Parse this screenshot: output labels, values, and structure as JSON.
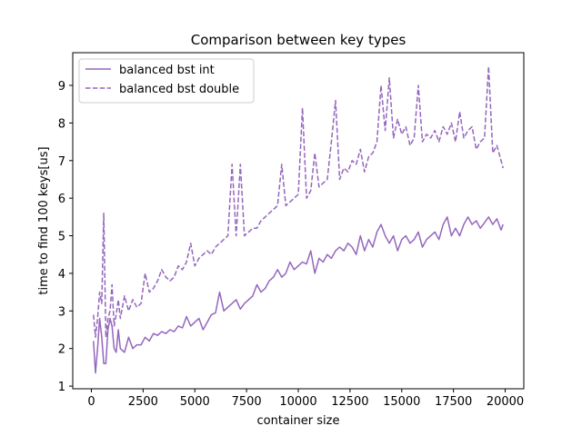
{
  "chart_data": {
    "type": "line",
    "title": "Comparison between key types",
    "xlabel": "container size",
    "ylabel": "time to find 100 keys[us]",
    "xlim": [
      -900,
      20900
    ],
    "ylim": [
      0.93,
      9.87
    ],
    "xticks": [
      0,
      2500,
      5000,
      7500,
      10000,
      12500,
      15000,
      17500,
      20000
    ],
    "yticks": [
      1,
      2,
      3,
      4,
      5,
      6,
      7,
      8,
      9
    ],
    "grid": false,
    "legend_position": "top-left",
    "colors": {
      "series_color": "#9467bd",
      "axis_color": "#000000",
      "background": "#ffffff"
    },
    "series": [
      {
        "name": "balanced bst int",
        "line_style": "solid",
        "points": [
          [
            100,
            2.2
          ],
          [
            200,
            1.35
          ],
          [
            300,
            2.0
          ],
          [
            400,
            2.8
          ],
          [
            500,
            2.3
          ],
          [
            600,
            1.6
          ],
          [
            700,
            1.6
          ],
          [
            800,
            2.5
          ],
          [
            900,
            2.8
          ],
          [
            1000,
            2.6
          ],
          [
            1100,
            2.0
          ],
          [
            1200,
            1.9
          ],
          [
            1300,
            2.5
          ],
          [
            1400,
            2.0
          ],
          [
            1600,
            1.9
          ],
          [
            1800,
            2.3
          ],
          [
            2000,
            2.0
          ],
          [
            2200,
            2.1
          ],
          [
            2400,
            2.1
          ],
          [
            2600,
            2.3
          ],
          [
            2800,
            2.2
          ],
          [
            3000,
            2.4
          ],
          [
            3200,
            2.35
          ],
          [
            3400,
            2.45
          ],
          [
            3600,
            2.4
          ],
          [
            3800,
            2.5
          ],
          [
            4000,
            2.45
          ],
          [
            4200,
            2.6
          ],
          [
            4400,
            2.55
          ],
          [
            4600,
            2.85
          ],
          [
            4800,
            2.6
          ],
          [
            5000,
            2.7
          ],
          [
            5200,
            2.8
          ],
          [
            5400,
            2.5
          ],
          [
            5600,
            2.7
          ],
          [
            5800,
            2.9
          ],
          [
            6000,
            2.95
          ],
          [
            6200,
            3.5
          ],
          [
            6400,
            3.0
          ],
          [
            6600,
            3.1
          ],
          [
            6800,
            3.2
          ],
          [
            7000,
            3.3
          ],
          [
            7200,
            3.05
          ],
          [
            7400,
            3.2
          ],
          [
            7600,
            3.3
          ],
          [
            7800,
            3.4
          ],
          [
            8000,
            3.7
          ],
          [
            8200,
            3.5
          ],
          [
            8400,
            3.6
          ],
          [
            8600,
            3.8
          ],
          [
            8800,
            3.9
          ],
          [
            9000,
            4.1
          ],
          [
            9200,
            3.9
          ],
          [
            9400,
            4.0
          ],
          [
            9600,
            4.3
          ],
          [
            9800,
            4.1
          ],
          [
            10000,
            4.2
          ],
          [
            10200,
            4.3
          ],
          [
            10400,
            4.25
          ],
          [
            10600,
            4.6
          ],
          [
            10800,
            4.0
          ],
          [
            11000,
            4.4
          ],
          [
            11200,
            4.3
          ],
          [
            11400,
            4.5
          ],
          [
            11600,
            4.4
          ],
          [
            11800,
            4.6
          ],
          [
            12000,
            4.7
          ],
          [
            12200,
            4.6
          ],
          [
            12400,
            4.8
          ],
          [
            12600,
            4.7
          ],
          [
            12800,
            4.5
          ],
          [
            13000,
            5.0
          ],
          [
            13200,
            4.6
          ],
          [
            13400,
            4.9
          ],
          [
            13600,
            4.7
          ],
          [
            13800,
            5.1
          ],
          [
            14000,
            5.3
          ],
          [
            14200,
            5.0
          ],
          [
            14400,
            4.8
          ],
          [
            14600,
            5.0
          ],
          [
            14800,
            4.6
          ],
          [
            15000,
            4.9
          ],
          [
            15200,
            5.0
          ],
          [
            15400,
            4.8
          ],
          [
            15600,
            4.9
          ],
          [
            15800,
            5.1
          ],
          [
            16000,
            4.7
          ],
          [
            16200,
            4.9
          ],
          [
            16400,
            5.0
          ],
          [
            16600,
            5.1
          ],
          [
            16800,
            4.9
          ],
          [
            17000,
            5.3
          ],
          [
            17200,
            5.5
          ],
          [
            17400,
            5.0
          ],
          [
            17600,
            5.2
          ],
          [
            17800,
            5.0
          ],
          [
            18000,
            5.3
          ],
          [
            18200,
            5.5
          ],
          [
            18400,
            5.3
          ],
          [
            18600,
            5.4
          ],
          [
            18800,
            5.2
          ],
          [
            19000,
            5.35
          ],
          [
            19200,
            5.5
          ],
          [
            19400,
            5.3
          ],
          [
            19600,
            5.45
          ],
          [
            19800,
            5.15
          ],
          [
            19900,
            5.3
          ]
        ]
      },
      {
        "name": "balanced bst double",
        "line_style": "dashed",
        "points": [
          [
            100,
            2.9
          ],
          [
            200,
            2.3
          ],
          [
            300,
            2.8
          ],
          [
            400,
            3.5
          ],
          [
            500,
            3.2
          ],
          [
            600,
            5.6
          ],
          [
            700,
            2.3
          ],
          [
            800,
            2.8
          ],
          [
            900,
            3.0
          ],
          [
            1000,
            3.7
          ],
          [
            1100,
            2.6
          ],
          [
            1200,
            2.9
          ],
          [
            1300,
            3.3
          ],
          [
            1400,
            2.8
          ],
          [
            1600,
            3.4
          ],
          [
            1800,
            3.0
          ],
          [
            2000,
            3.3
          ],
          [
            2200,
            3.1
          ],
          [
            2400,
            3.2
          ],
          [
            2600,
            4.0
          ],
          [
            2800,
            3.5
          ],
          [
            3000,
            3.6
          ],
          [
            3200,
            3.8
          ],
          [
            3400,
            4.1
          ],
          [
            3600,
            3.9
          ],
          [
            3800,
            3.8
          ],
          [
            4000,
            3.9
          ],
          [
            4200,
            4.2
          ],
          [
            4400,
            4.1
          ],
          [
            4600,
            4.3
          ],
          [
            4800,
            4.8
          ],
          [
            5000,
            4.2
          ],
          [
            5200,
            4.4
          ],
          [
            5400,
            4.5
          ],
          [
            5600,
            4.6
          ],
          [
            5800,
            4.5
          ],
          [
            6000,
            4.7
          ],
          [
            6200,
            4.8
          ],
          [
            6400,
            4.9
          ],
          [
            6600,
            5.0
          ],
          [
            6800,
            6.9
          ],
          [
            7000,
            5.0
          ],
          [
            7200,
            6.9
          ],
          [
            7400,
            5.0
          ],
          [
            7600,
            5.1
          ],
          [
            7800,
            5.2
          ],
          [
            8000,
            5.2
          ],
          [
            8200,
            5.4
          ],
          [
            8400,
            5.5
          ],
          [
            8600,
            5.6
          ],
          [
            8800,
            5.7
          ],
          [
            9000,
            5.8
          ],
          [
            9200,
            6.9
          ],
          [
            9400,
            5.8
          ],
          [
            9600,
            5.9
          ],
          [
            9800,
            6.0
          ],
          [
            10000,
            6.1
          ],
          [
            10200,
            8.4
          ],
          [
            10400,
            6.0
          ],
          [
            10600,
            6.2
          ],
          [
            10800,
            7.2
          ],
          [
            11000,
            6.3
          ],
          [
            11200,
            6.4
          ],
          [
            11400,
            6.5
          ],
          [
            11600,
            7.5
          ],
          [
            11800,
            8.6
          ],
          [
            12000,
            6.5
          ],
          [
            12200,
            6.8
          ],
          [
            12400,
            6.7
          ],
          [
            12600,
            7.0
          ],
          [
            12800,
            6.9
          ],
          [
            13000,
            7.3
          ],
          [
            13200,
            6.7
          ],
          [
            13400,
            7.1
          ],
          [
            13600,
            7.2
          ],
          [
            13800,
            7.5
          ],
          [
            14000,
            9.0
          ],
          [
            14200,
            7.8
          ],
          [
            14400,
            9.2
          ],
          [
            14600,
            7.6
          ],
          [
            14800,
            8.1
          ],
          [
            15000,
            7.7
          ],
          [
            15200,
            7.9
          ],
          [
            15400,
            7.4
          ],
          [
            15600,
            7.6
          ],
          [
            15800,
            9.0
          ],
          [
            16000,
            7.5
          ],
          [
            16200,
            7.7
          ],
          [
            16400,
            7.6
          ],
          [
            16600,
            7.8
          ],
          [
            16800,
            7.5
          ],
          [
            17000,
            7.9
          ],
          [
            17200,
            7.7
          ],
          [
            17400,
            8.0
          ],
          [
            17600,
            7.5
          ],
          [
            17800,
            8.3
          ],
          [
            18000,
            7.6
          ],
          [
            18200,
            7.8
          ],
          [
            18400,
            7.9
          ],
          [
            18600,
            7.3
          ],
          [
            18800,
            7.5
          ],
          [
            19000,
            7.6
          ],
          [
            19200,
            9.5
          ],
          [
            19400,
            7.2
          ],
          [
            19600,
            7.4
          ],
          [
            19800,
            7.0
          ],
          [
            19900,
            6.8
          ]
        ]
      }
    ]
  }
}
